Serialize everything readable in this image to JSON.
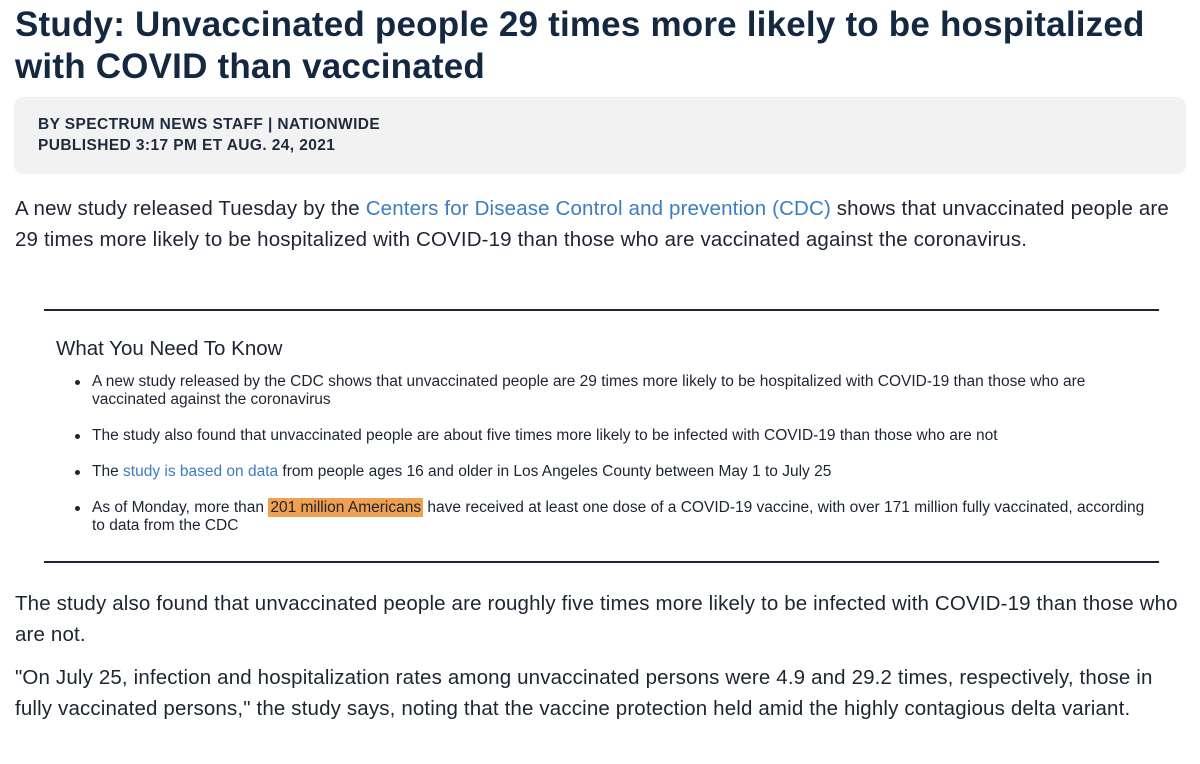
{
  "article": {
    "headline": "Study: Unvaccinated people 29 times more likely to be hospitalized with COVID than vaccinated",
    "byline": {
      "author_line": "BY SPECTRUM NEWS STAFF | NATIONWIDE",
      "published_line": "PUBLISHED 3:17 PM ET AUG. 24, 2021"
    },
    "intro": {
      "before_link": "A new study released Tuesday by the ",
      "link_text": "Centers for Disease Control and prevention (CDC)",
      "after_link": " shows that unvaccinated people are 29 times more likely to be hospitalized with COVID-19 than those who are vaccinated against the coronavirus."
    },
    "need_to_know": {
      "heading": "What You Need To Know",
      "bullet_1": "A new study released by the CDC shows that unvaccinated people are 29 times more likely to be hospitalized with COVID-19 than those who are vaccinated against the coronavirus",
      "bullet_2": "The study also found that unvaccinated people are about five times more likely to be infected with COVID-19 than those who are not",
      "bullet_3": {
        "before_link": "The ",
        "link_text": "study is based on data",
        "after_link": " from people ages 16 and older in Los Angeles County between May 1 to July 25"
      },
      "bullet_4": {
        "before_highlight": "As of Monday, more than ",
        "highlight_text": "201 million Americans",
        "after_highlight": " have received at least one dose of a COVID-19 vaccine, with over 171 million fully vaccinated, according to data from the CDC"
      }
    },
    "para_2": "The study also found that unvaccinated people are roughly five times more likely to be infected with COVID-19 than those who are not.",
    "para_3": "\"On July 25, infection and hospitalization rates among unvaccinated persons were 4.9 and 29.2 times, respectively, those in fully vaccinated persons,\" the study says, noting that the vaccine protection held amid the highly contagious delta variant."
  },
  "colors": {
    "headline": "#142841",
    "text": "#1d2432",
    "link": "#3d7cc0",
    "highlight": "#f0a050",
    "byline_bg": "#f2f2f2"
  }
}
